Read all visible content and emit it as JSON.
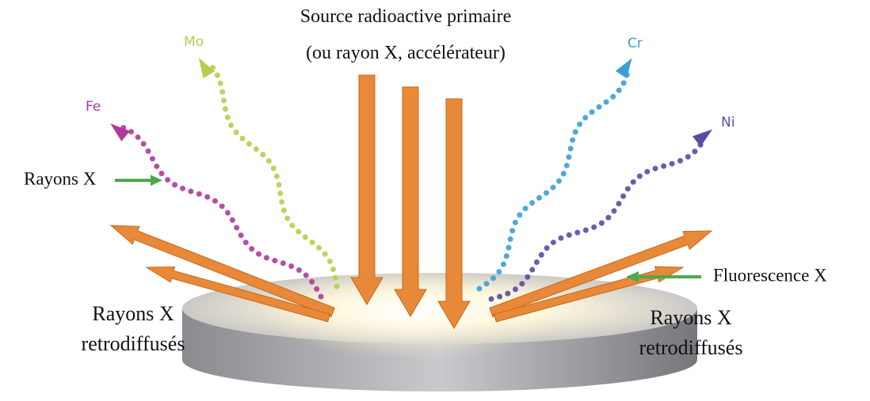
{
  "source": {
    "line1": "Source radioactive primaire",
    "line2": "(ou rayon X, accélérateur)"
  },
  "elements": {
    "mo": "Mo",
    "fe": "Fe",
    "cr": "Cr",
    "ni": "Ni"
  },
  "labels": {
    "xrays": "Rayons X",
    "fluorescence": "Fluorescence X",
    "backscatter_left": {
      "line1": "Rayons X",
      "line2": "retrodiffusés"
    },
    "backscatter_right": {
      "line1": "Rayons X",
      "line2": "retrodiffusés"
    }
  }
}
